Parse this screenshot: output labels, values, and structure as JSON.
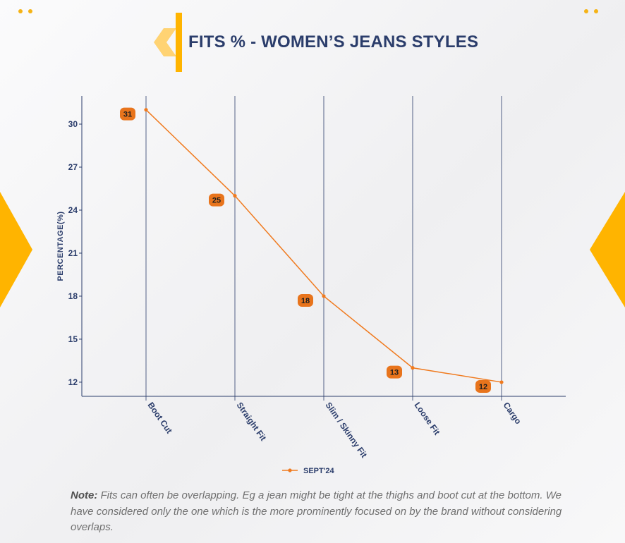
{
  "colors": {
    "accent": "#ffb400",
    "line": "#f07a1e",
    "label_bg": "#e8741c",
    "title": "#2b3d6b",
    "grid": "#2b3d6b"
  },
  "header": {
    "title": "FITS % - WOMEN’S JEANS STYLES"
  },
  "chart_data": {
    "type": "line",
    "title": "FITS % - WOMEN’S JEANS STYLES",
    "xlabel": "",
    "ylabel": "PERCENTAGE(%)",
    "categories": [
      "Boot Cut",
      "Straight Fit",
      "Slim / Skinny Fit",
      "Loose Fit",
      "Cargo"
    ],
    "series": [
      {
        "name": "SEPT'24",
        "values": [
          31,
          25,
          18,
          13,
          12
        ]
      }
    ],
    "yticks": [
      12,
      15,
      18,
      21,
      24,
      27,
      30
    ],
    "ylim": [
      11,
      33
    ],
    "grid": "vertical",
    "legend": "bottom-center",
    "data_labels": true
  },
  "note": {
    "label": "Note:",
    "text": " Fits can often be overlapping. Eg a jean might be tight at the thighs and boot cut at the bottom. We have considered only the one which is the more prominently focused on by the brand without considering overlaps."
  }
}
